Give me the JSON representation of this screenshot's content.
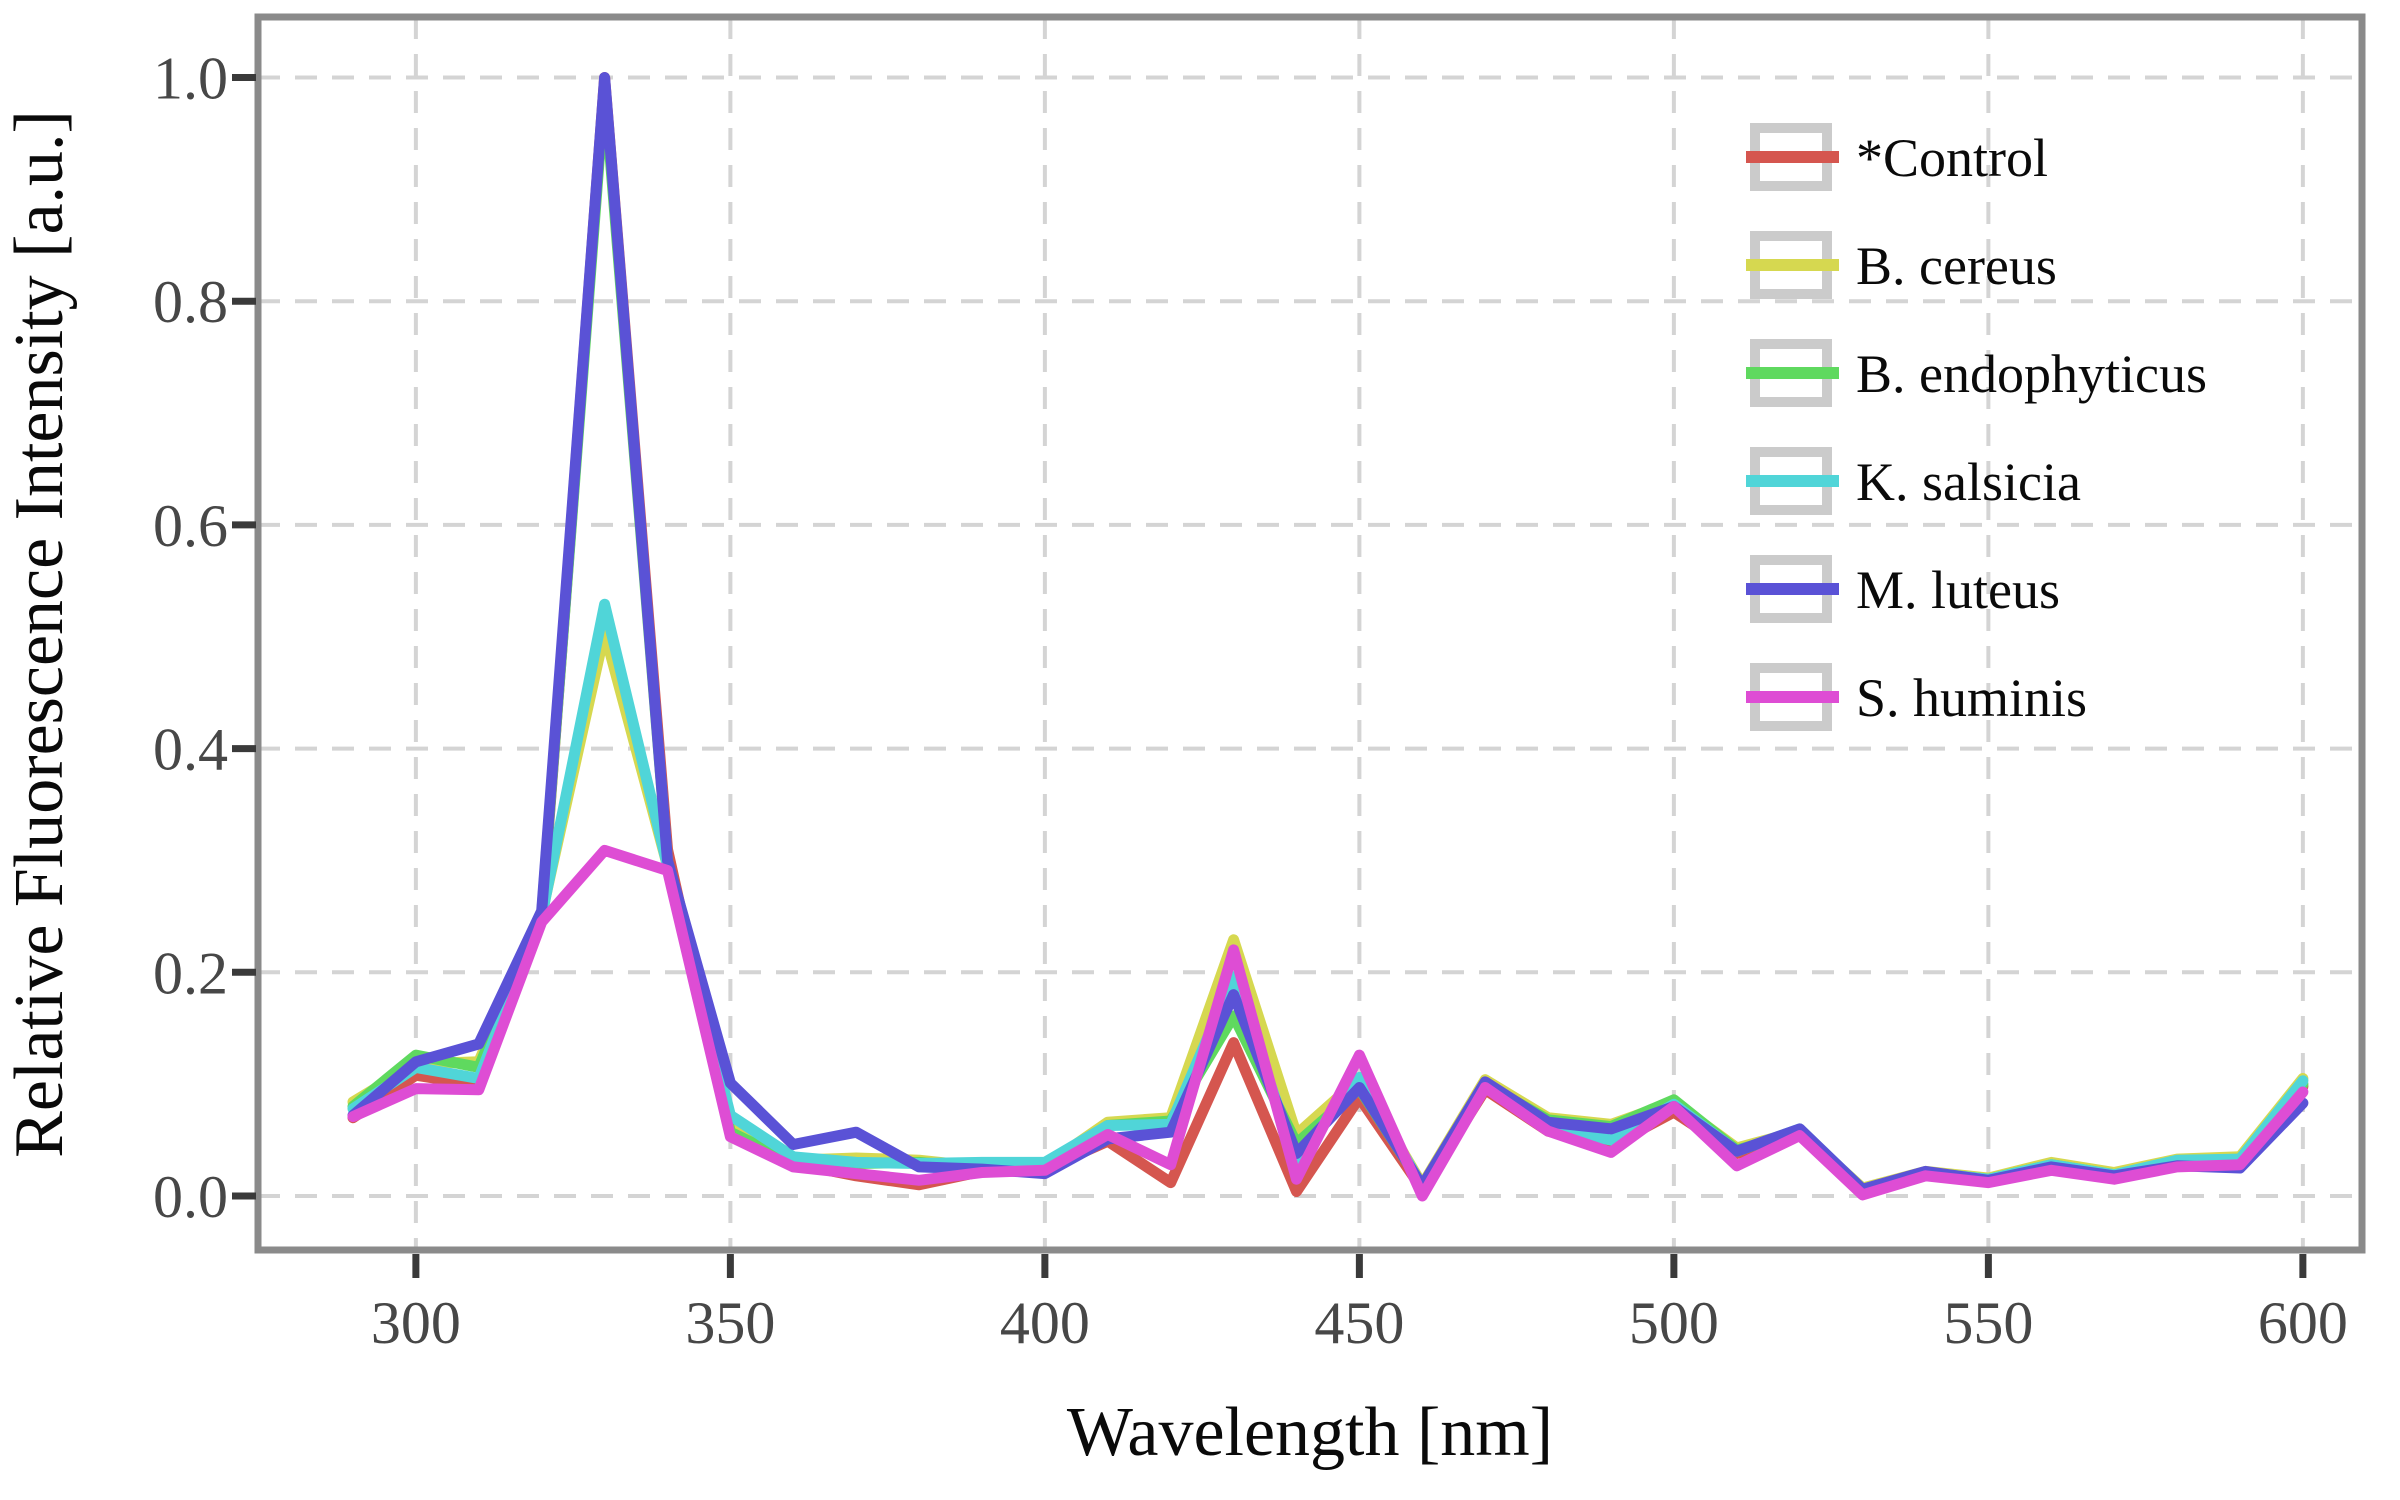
{
  "chart_data": {
    "type": "line",
    "title": "",
    "xlabel": "Wavelength [nm]",
    "ylabel": "Relative Fluorescence Intensity [a.u.]",
    "x": [
      290,
      300,
      310,
      320,
      330,
      340,
      350,
      360,
      370,
      380,
      390,
      400,
      410,
      420,
      430,
      440,
      450,
      460,
      470,
      480,
      490,
      500,
      510,
      520,
      530,
      540,
      550,
      560,
      570,
      580,
      590,
      600
    ],
    "x_ticks": [
      300,
      350,
      400,
      450,
      500,
      550,
      600
    ],
    "y_ticks": [
      0.0,
      0.2,
      0.4,
      0.6,
      0.8,
      1.0
    ],
    "xlim": [
      274.9,
      609.4
    ],
    "ylim": [
      -0.0483,
      1.0541
    ],
    "grid": true,
    "grid_style": "dashed",
    "legend_position": "upper right",
    "series": [
      {
        "name": "*Control",
        "color": "#D5564F",
        "values": [
          0.07,
          0.108,
          0.099,
          0.248,
          1.0,
          0.31,
          0.058,
          0.029,
          0.018,
          0.01,
          0.022,
          0.024,
          0.049,
          0.012,
          0.137,
          0.004,
          0.088,
          0.006,
          0.095,
          0.058,
          0.045,
          0.075,
          0.038,
          0.055,
          0.004,
          0.019,
          0.013,
          0.026,
          0.016,
          0.028,
          0.028,
          0.098
        ]
      },
      {
        "name": "B. cereus",
        "color": "#D6D850",
        "values": [
          0.084,
          0.118,
          0.12,
          0.252,
          0.504,
          0.295,
          0.065,
          0.032,
          0.034,
          0.032,
          0.026,
          0.027,
          0.066,
          0.07,
          0.229,
          0.055,
          0.105,
          0.01,
          0.104,
          0.07,
          0.064,
          0.084,
          0.043,
          0.058,
          0.007,
          0.022,
          0.016,
          0.03,
          0.021,
          0.033,
          0.035,
          0.105
        ]
      },
      {
        "name": "B. endophyticus",
        "color": "#5FD95F",
        "values": [
          0.08,
          0.126,
          0.115,
          0.252,
          0.99,
          0.3,
          0.057,
          0.03,
          0.029,
          0.03,
          0.025,
          0.026,
          0.063,
          0.067,
          0.161,
          0.047,
          0.096,
          0.009,
          0.1,
          0.068,
          0.062,
          0.086,
          0.041,
          0.057,
          0.006,
          0.021,
          0.015,
          0.028,
          0.019,
          0.031,
          0.033,
          0.1
        ]
      },
      {
        "name": "K. salsicia",
        "color": "#50D5D8",
        "values": [
          0.078,
          0.115,
          0.105,
          0.25,
          0.529,
          0.295,
          0.072,
          0.035,
          0.03,
          0.029,
          0.03,
          0.03,
          0.063,
          0.064,
          0.196,
          0.032,
          0.106,
          0.008,
          0.098,
          0.062,
          0.05,
          0.082,
          0.04,
          0.06,
          0.006,
          0.021,
          0.015,
          0.028,
          0.019,
          0.032,
          0.033,
          0.103
        ]
      },
      {
        "name": "M. luteus",
        "color": "#5A52D6",
        "values": [
          0.072,
          0.12,
          0.136,
          0.255,
          1.0,
          0.3,
          0.101,
          0.046,
          0.057,
          0.026,
          0.024,
          0.02,
          0.051,
          0.057,
          0.18,
          0.038,
          0.097,
          0.009,
          0.102,
          0.066,
          0.06,
          0.08,
          0.04,
          0.06,
          0.006,
          0.022,
          0.014,
          0.026,
          0.018,
          0.027,
          0.025,
          0.083
        ]
      },
      {
        "name": "S. huminis",
        "color": "#DE4DD4",
        "values": [
          0.071,
          0.096,
          0.095,
          0.245,
          0.309,
          0.291,
          0.053,
          0.026,
          0.02,
          0.014,
          0.021,
          0.023,
          0.055,
          0.028,
          0.22,
          0.015,
          0.126,
          0.0,
          0.097,
          0.058,
          0.039,
          0.08,
          0.027,
          0.054,
          0.001,
          0.018,
          0.012,
          0.023,
          0.015,
          0.026,
          0.028,
          0.093
        ]
      }
    ],
    "style": {
      "line_width": 11,
      "grid_color": "#D4D4D4",
      "spine_color": "#8A8A8A",
      "tick_color": "#3A3A3A",
      "tick_label_color": "#474747",
      "legend_box_color": "#CBCBCB",
      "background": "#FFFFFF"
    }
  }
}
